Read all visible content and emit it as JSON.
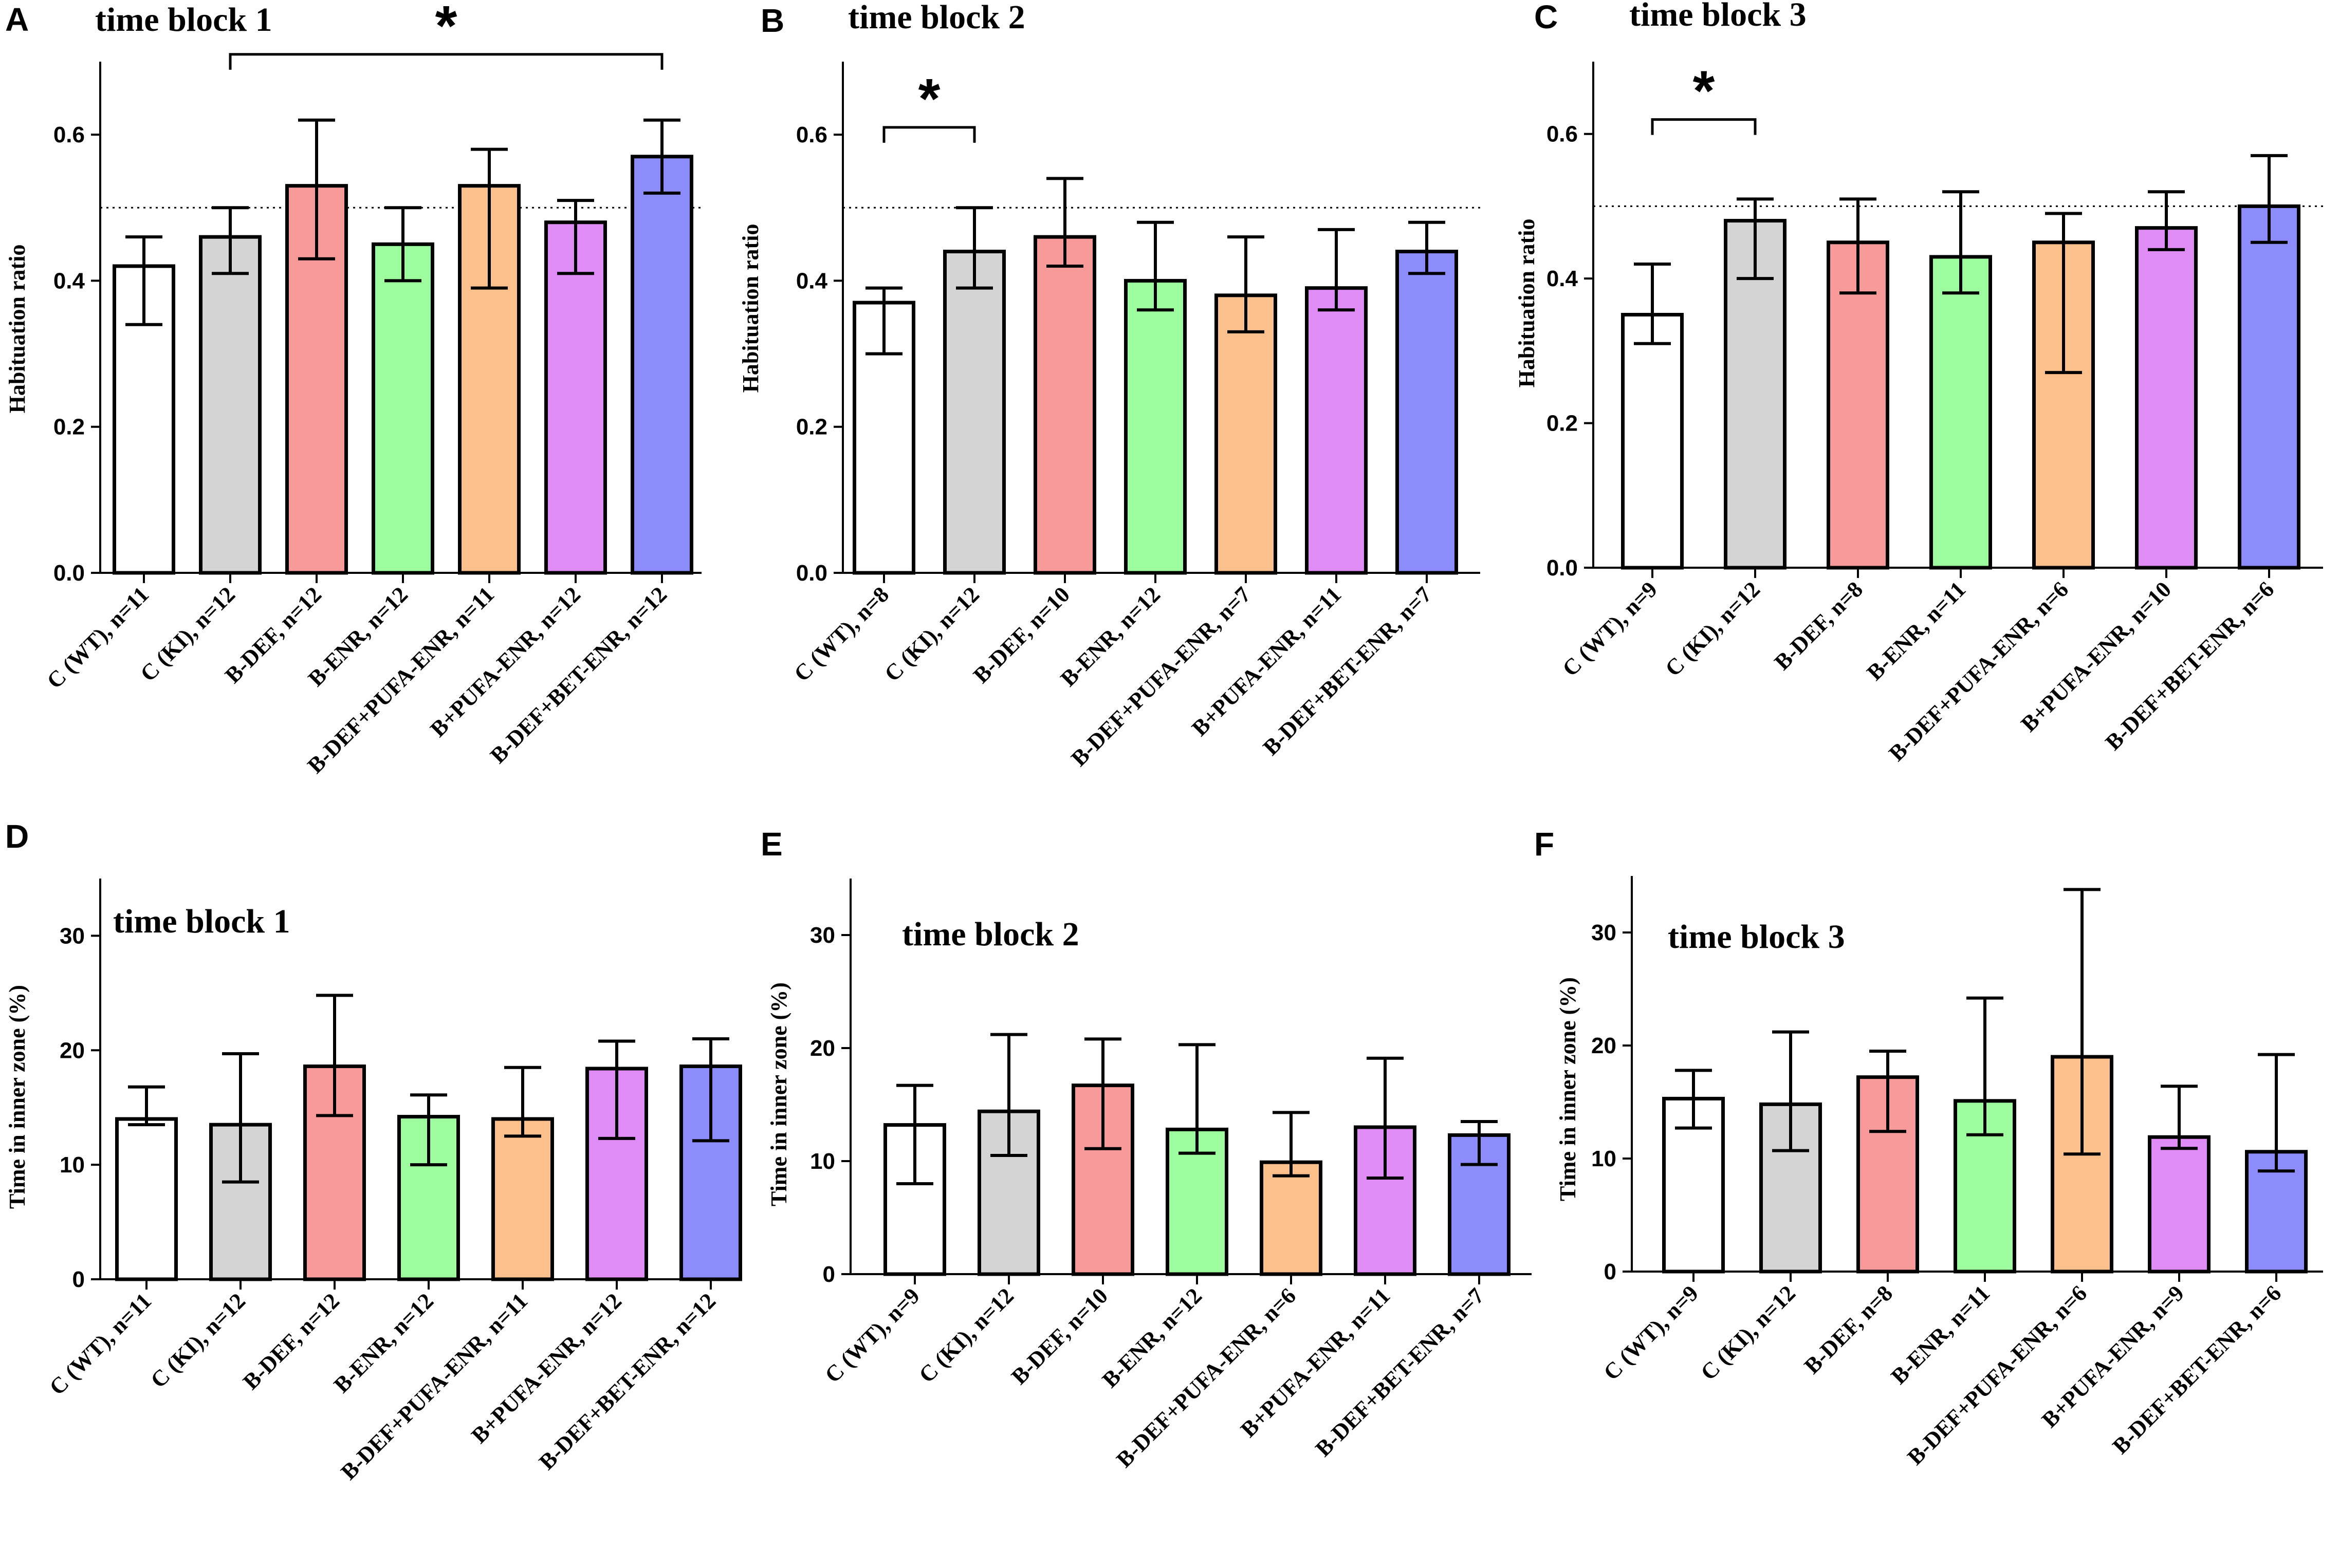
{
  "chart_data": [
    {
      "panel": "A",
      "type": "bar",
      "title": "time block 1",
      "ylabel": "Habituation ratio",
      "ylim": [
        0,
        0.7
      ],
      "yticks": [
        "0.0",
        "0.2",
        "0.4",
        "0.6"
      ],
      "reference_line": 0.5,
      "categories": [
        "C (WT), n=11",
        "C (KI), n=12",
        "B-DEF, n=12",
        "B-ENR, n=12",
        "B-DEF+PUFA-ENR, n=11",
        "B+PUFA-ENR, n=12",
        "B-DEF+BET-ENR, n=12"
      ],
      "values": [
        0.42,
        0.46,
        0.53,
        0.45,
        0.53,
        0.48,
        0.57
      ],
      "err_low": [
        0.34,
        0.41,
        0.43,
        0.4,
        0.39,
        0.41,
        0.52
      ],
      "err_high": [
        0.46,
        0.5,
        0.62,
        0.5,
        0.58,
        0.51,
        0.62
      ],
      "significance": [
        {
          "from": 1,
          "to": 6,
          "label": "*",
          "y": 0.71
        }
      ]
    },
    {
      "panel": "B",
      "type": "bar",
      "title": "time block 2",
      "ylabel": "Habituation ratio",
      "ylim": [
        0,
        0.7
      ],
      "yticks": [
        "0.0",
        "0.2",
        "0.4",
        "0.6"
      ],
      "reference_line": 0.5,
      "categories": [
        "C (WT), n=8",
        "C (KI), n=12",
        "B-DEF, n=10",
        "B-ENR, n=12",
        "B-DEF+PUFA-ENR, n=7",
        "B+PUFA-ENR, n=11",
        "B-DEF+BET-ENR, n=7"
      ],
      "values": [
        0.37,
        0.44,
        0.46,
        0.4,
        0.38,
        0.39,
        0.44
      ],
      "err_low": [
        0.3,
        0.39,
        0.42,
        0.36,
        0.33,
        0.36,
        0.41
      ],
      "err_high": [
        0.39,
        0.5,
        0.54,
        0.48,
        0.46,
        0.47,
        0.48
      ],
      "significance": [
        {
          "from": 0,
          "to": 1,
          "label": "*",
          "y": 0.61
        }
      ]
    },
    {
      "panel": "C",
      "type": "bar",
      "title": "time block 3",
      "ylabel": "Habituation ratio",
      "ylim": [
        0,
        0.7
      ],
      "yticks": [
        "0.0",
        "0.2",
        "0.4",
        "0.6"
      ],
      "reference_line": 0.5,
      "categories": [
        "C (WT), n=9",
        "C (KI), n=12",
        "B-DEF, n=8",
        "B-ENR, n=11",
        "B-DEF+PUFA-ENR, n=6",
        "B+PUFA-ENR, n=10",
        "B-DEF+BET-ENR, n=6"
      ],
      "values": [
        0.35,
        0.48,
        0.45,
        0.43,
        0.45,
        0.47,
        0.5
      ],
      "err_low": [
        0.31,
        0.4,
        0.38,
        0.38,
        0.27,
        0.44,
        0.45
      ],
      "err_high": [
        0.42,
        0.51,
        0.51,
        0.52,
        0.49,
        0.52,
        0.57
      ],
      "significance": [
        {
          "from": 0,
          "to": 1,
          "label": "*",
          "y": 0.62
        }
      ]
    },
    {
      "panel": "D",
      "type": "bar",
      "title": "time block 1",
      "ylabel": "Time in inner zone (%)",
      "ylim": [
        0,
        35
      ],
      "yticks": [
        "0",
        "10",
        "20",
        "30"
      ],
      "categories": [
        "C (WT), n=11",
        "C (KI), n=12",
        "B-DEF, n=12",
        "B-ENR, n=12",
        "B-DEF+PUFA-ENR, n=11",
        "B+PUFA-ENR, n=12",
        "B-DEF+BET-ENR, n=12"
      ],
      "values": [
        14.0,
        13.5,
        18.6,
        14.2,
        14.0,
        18.4,
        18.6
      ],
      "err_low": [
        13.5,
        8.5,
        14.3,
        10.0,
        12.5,
        12.3,
        12.1
      ],
      "err_high": [
        16.8,
        19.7,
        24.8,
        16.1,
        18.5,
        20.8,
        21.0
      ],
      "significance": []
    },
    {
      "panel": "E",
      "type": "bar",
      "title": "time block 2",
      "ylabel": "Time in inner zone (%)",
      "ylim": [
        0,
        35
      ],
      "yticks": [
        "0",
        "10",
        "20",
        "30"
      ],
      "categories": [
        "C (WT), n=9",
        "C (KI), n=12",
        "B-DEF, n=10",
        "B-ENR, n=12",
        "B-DEF+PUFA-ENR, n=6",
        "B+PUFA-ENR, n=11",
        "B-DEF+BET-ENR, n=7"
      ],
      "values": [
        13.2,
        14.4,
        16.7,
        12.8,
        9.9,
        13.0,
        12.3
      ],
      "err_low": [
        8.0,
        10.5,
        11.1,
        10.7,
        8.7,
        8.5,
        9.7
      ],
      "err_high": [
        16.7,
        21.2,
        20.8,
        20.3,
        14.3,
        19.1,
        13.5
      ],
      "significance": []
    },
    {
      "panel": "F",
      "type": "bar",
      "title": "time block 3",
      "ylabel": "Time in inner zone (%)",
      "ylim": [
        0,
        35
      ],
      "yticks": [
        "0",
        "10",
        "20",
        "30"
      ],
      "categories": [
        "C (WT), n=9",
        "C (KI), n=12",
        "B-DEF, n=8",
        "B-ENR, n=11",
        "B-DEF+PUFA-ENR, n=6",
        "B+PUFA-ENR, n=9",
        "B-DEF+BET-ENR, n=6"
      ],
      "values": [
        15.3,
        14.8,
        17.2,
        15.1,
        19.0,
        11.9,
        10.6
      ],
      "err_low": [
        12.7,
        10.7,
        12.4,
        12.1,
        10.4,
        10.9,
        8.9
      ],
      "err_high": [
        17.8,
        21.2,
        19.5,
        24.2,
        33.8,
        16.4,
        19.2
      ],
      "significance": []
    }
  ],
  "colors": {
    "bars": [
      "#ffffff",
      "#d4d4d4",
      "#f99a9a",
      "#9dfc9d",
      "#fbc08c",
      "#e08cf6",
      "#8c8cfc"
    ],
    "stroke": "#000000"
  }
}
